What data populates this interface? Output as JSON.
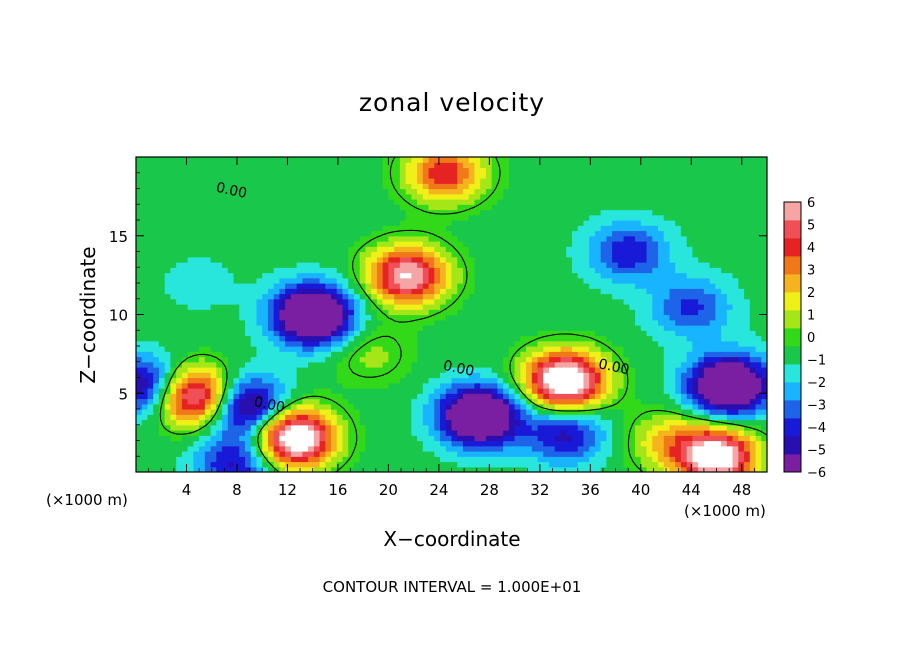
{
  "chart_data": {
    "type": "heatmap",
    "title": "zonal velocity",
    "xlabel": "X−coordinate",
    "ylabel": "Z−coordinate",
    "x_unit": "(×1000 m)",
    "x_range": [
      0,
      50
    ],
    "y_range": [
      0,
      20
    ],
    "x_ticks": [
      4,
      8,
      12,
      16,
      20,
      24,
      28,
      32,
      36,
      40,
      44,
      48
    ],
    "y_ticks": [
      5,
      10,
      15
    ],
    "colorbar": {
      "levels": [
        6,
        5,
        4,
        3,
        2,
        1,
        0,
        -1,
        -2,
        -3,
        -4,
        -5,
        -6
      ],
      "range": [
        -6,
        6
      ],
      "colors": [
        "#7b1fa2",
        "#2a0fb0",
        "#1919d8",
        "#1e64e8",
        "#19b4ff",
        "#28e6dc",
        "#19c84b",
        "#32d919",
        "#a5e619",
        "#f0f019",
        "#f5b41e",
        "#f07819",
        "#e62323",
        "#f05055",
        "#f5a5a5"
      ]
    },
    "contour_labels": [
      {
        "text": "0.00",
        "x": 7.5,
        "y": 17.6
      },
      {
        "text": "0.00",
        "x": 10.5,
        "y": 4.0
      },
      {
        "text": "0.00",
        "x": 25.5,
        "y": 6.3
      },
      {
        "text": "0.00",
        "x": 37.8,
        "y": 6.4
      }
    ],
    "features": [
      {
        "kind": "max",
        "x": 21.5,
        "y": 12.5,
        "value": 7.0
      },
      {
        "kind": "max",
        "x": 24.5,
        "y": 19.0,
        "value": 5.0
      },
      {
        "kind": "max",
        "x": 34.0,
        "y": 5.8,
        "value": 9.0
      },
      {
        "kind": "max",
        "x": 12.5,
        "y": 2.2,
        "value": 9.0
      },
      {
        "kind": "max",
        "x": 4.8,
        "y": 4.8,
        "value": 8.0
      },
      {
        "kind": "max",
        "x": 46.0,
        "y": 1.0,
        "value": 8.0
      },
      {
        "kind": "min",
        "x": 14.0,
        "y": 10.0,
        "value": -8.0
      },
      {
        "kind": "min",
        "x": 27.2,
        "y": 3.6,
        "value": -8.0
      },
      {
        "kind": "min",
        "x": 47.0,
        "y": 5.5,
        "value": -8.0
      },
      {
        "kind": "min",
        "x": 39.0,
        "y": 14.0,
        "value": -3.5
      },
      {
        "kind": "min",
        "x": 44.0,
        "y": 10.5,
        "value": -3.0
      },
      {
        "kind": "min",
        "x": 8.6,
        "y": 4.2,
        "value": -6.5
      },
      {
        "kind": "min",
        "x": 0.5,
        "y": 5.5,
        "value": -5.0
      },
      {
        "kind": "min",
        "x": 8.0,
        "y": 0.6,
        "value": -4.0
      },
      {
        "kind": "min",
        "x": 34.0,
        "y": 2.5,
        "value": -4.0
      },
      {
        "kind": "max",
        "x": 42.0,
        "y": 2.0,
        "value": 2.5
      },
      {
        "kind": "max",
        "x": 18.5,
        "y": 7.5,
        "value": 1.5
      },
      {
        "kind": "min",
        "x": 5.0,
        "y": 12.0,
        "value": -0.8
      }
    ],
    "background_value": -0.8,
    "grid": false,
    "legend": "right"
  },
  "contour_note": "CONTOUR INTERVAL = 1.000E+01"
}
